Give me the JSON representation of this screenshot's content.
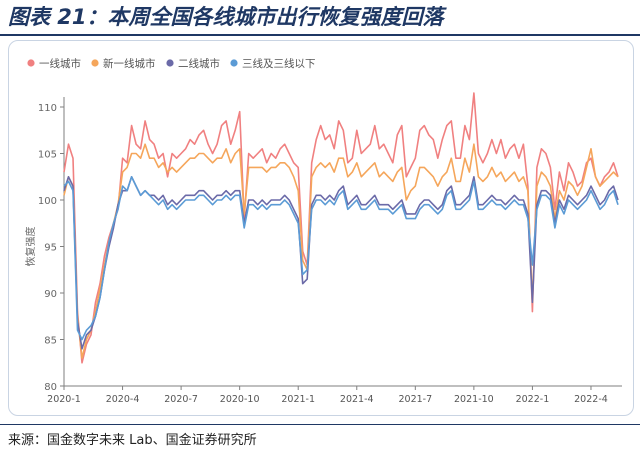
{
  "header": {
    "title": "图表 21：本周全国各线城市出行恢复强度回落"
  },
  "source": {
    "label": "来源：",
    "text": "国金数字未来 Lab、国金证券研究所"
  },
  "chart_data": {
    "type": "line",
    "title": "",
    "xlabel": "",
    "ylabel": "恢复强度",
    "ylim": [
      80,
      110
    ],
    "yticks": [
      80,
      85,
      90,
      95,
      100,
      105,
      110
    ],
    "grid": false,
    "legend_position": "top-left",
    "x_tick_labels": [
      "2020-1",
      "2020-4",
      "2020-7",
      "2020-10",
      "2021-1",
      "2021-4",
      "2021-7",
      "2021-10",
      "2022-1",
      "2022-4"
    ],
    "x_tick_weeks": [
      0,
      13,
      26,
      39,
      52,
      65,
      78,
      91,
      104,
      117
    ],
    "x": [
      0,
      1,
      2,
      3,
      4,
      5,
      6,
      7,
      8,
      9,
      10,
      11,
      12,
      13,
      14,
      15,
      16,
      17,
      18,
      19,
      20,
      21,
      22,
      23,
      24,
      25,
      26,
      27,
      28,
      29,
      30,
      31,
      32,
      33,
      34,
      35,
      36,
      37,
      38,
      39,
      40,
      41,
      42,
      43,
      44,
      45,
      46,
      47,
      48,
      49,
      50,
      51,
      52,
      53,
      54,
      55,
      56,
      57,
      58,
      59,
      60,
      61,
      62,
      63,
      64,
      65,
      66,
      67,
      68,
      69,
      70,
      71,
      72,
      73,
      74,
      75,
      76,
      77,
      78,
      79,
      80,
      81,
      82,
      83,
      84,
      85,
      86,
      87,
      88,
      89,
      90,
      91,
      92,
      93,
      94,
      95,
      96,
      97,
      98,
      99,
      100,
      101,
      102,
      103,
      104,
      105,
      106,
      107,
      108,
      109,
      110,
      111,
      112,
      113,
      114,
      115,
      116,
      117,
      118,
      119,
      120,
      121,
      122,
      123
    ],
    "series": [
      {
        "name": "一线城市",
        "color": "#f08080",
        "values": [
          103,
          106,
          104.5,
          88,
          82.5,
          84.5,
          85.5,
          89,
          91,
          94,
          96,
          97.5,
          99,
          104.5,
          104,
          108,
          106,
          105.5,
          108.5,
          106.5,
          106,
          104.5,
          105,
          102.5,
          105,
          104.5,
          105,
          105.5,
          106.5,
          106,
          107,
          107.5,
          106,
          105,
          106,
          108,
          108.5,
          106,
          107.5,
          109.5,
          98,
          105,
          104.5,
          105,
          105.5,
          104,
          105,
          104.5,
          105.5,
          106,
          105,
          104,
          103.5,
          94.5,
          93,
          104,
          106.5,
          108,
          106.5,
          107,
          105.5,
          108.5,
          107.5,
          104,
          104.5,
          107.5,
          105,
          105.5,
          106,
          108,
          105.5,
          106,
          105,
          104,
          107,
          108,
          102.5,
          103.5,
          104.5,
          107.5,
          108,
          107,
          106.5,
          104.5,
          106.5,
          108,
          108.5,
          104.5,
          104.5,
          108,
          106.5,
          111.5,
          105,
          104,
          105,
          106.5,
          105,
          106.5,
          104.5,
          105.5,
          106,
          104.5,
          106,
          101.5,
          88,
          103.5,
          105.5,
          105,
          103.5,
          99,
          103,
          101,
          104,
          103,
          101.5,
          102,
          104,
          104.5,
          102.5,
          101.5,
          102.5,
          103,
          104,
          102.5
        ]
      },
      {
        "name": "新一线城市",
        "color": "#f5a65b",
        "values": [
          100.5,
          102.5,
          101.5,
          87.5,
          83,
          85,
          86,
          88,
          90.5,
          93,
          95.5,
          97.5,
          99.5,
          103,
          103.5,
          105,
          105,
          104.5,
          106,
          104.5,
          104.5,
          103.5,
          104,
          103,
          103.5,
          103,
          103.5,
          104,
          104.5,
          104.5,
          105,
          105,
          104.5,
          104,
          104.5,
          104.5,
          105.5,
          104,
          105,
          105.5,
          98.5,
          103.5,
          103.5,
          103.5,
          103.5,
          103,
          103.5,
          103.5,
          104,
          104,
          103.5,
          102.5,
          101,
          93.5,
          92.5,
          102.5,
          103.5,
          104,
          103.5,
          104,
          103,
          104.5,
          104.5,
          102.5,
          103,
          104,
          102.5,
          103,
          103.5,
          104,
          102.5,
          103,
          102.5,
          102,
          103,
          103.5,
          100,
          101,
          101.5,
          103.5,
          103.5,
          103,
          102.5,
          101.5,
          102.5,
          103,
          104.5,
          102,
          102,
          104.5,
          103,
          106,
          102.5,
          102,
          102.5,
          103.5,
          102.5,
          103,
          102,
          102.5,
          103,
          102,
          102.5,
          101,
          89,
          101.5,
          103,
          102.5,
          101.5,
          98,
          101,
          100,
          102,
          101.5,
          100.5,
          101.5,
          103.5,
          105.5,
          102.5,
          101.5,
          102,
          102.5,
          103,
          102.5
        ]
      },
      {
        "name": "二线城市",
        "color": "#6b6aa8",
        "values": [
          101,
          102.5,
          101.5,
          87,
          84,
          85.5,
          86,
          87.5,
          89.5,
          92.5,
          95,
          97,
          99.5,
          101,
          101,
          102.5,
          101.5,
          100.5,
          101,
          100.5,
          100.5,
          100,
          100.5,
          99.5,
          100,
          99.5,
          100,
          100.5,
          100.5,
          100.5,
          101,
          101,
          100.5,
          100,
          100.5,
          100.5,
          101,
          100.5,
          101,
          101,
          97.5,
          100,
          100,
          99.5,
          100,
          99.5,
          100,
          100,
          100,
          100.5,
          100,
          99,
          98,
          91,
          91.5,
          99.5,
          100.5,
          100.5,
          100,
          100.5,
          100,
          101,
          101.5,
          99.5,
          100,
          100.5,
          99.5,
          99.5,
          100,
          100.5,
          99.5,
          99.5,
          99.5,
          99,
          99.5,
          100,
          98.5,
          98.5,
          98.5,
          99.5,
          100,
          100,
          99.5,
          99,
          99.5,
          101,
          101.5,
          99.5,
          99.5,
          100,
          100.5,
          102.5,
          99.5,
          99.5,
          100,
          100.5,
          100,
          100,
          99.5,
          100,
          100.5,
          100,
          100,
          98.5,
          89,
          99.5,
          101,
          101,
          100.5,
          97.5,
          100,
          99,
          100.5,
          100,
          99.5,
          100,
          100.5,
          101.5,
          100.5,
          99.5,
          100,
          101,
          101.5,
          100
        ]
      },
      {
        "name": "三线及三线以下",
        "color": "#5b9bd5",
        "values": [
          101.5,
          102,
          101,
          86,
          85,
          86,
          86.5,
          87.5,
          89.5,
          92.5,
          95.5,
          97.5,
          99,
          101.5,
          101,
          102.5,
          101.5,
          100.5,
          101,
          100.5,
          100,
          99.5,
          100,
          99,
          99.5,
          99,
          99.5,
          100,
          100,
          100,
          100.5,
          100.5,
          100,
          99.5,
          100,
          100,
          100.5,
          100,
          100.5,
          100.5,
          97,
          99.5,
          99.5,
          99,
          99.5,
          99,
          99.5,
          99.5,
          99.5,
          100,
          99.5,
          98.5,
          97.5,
          92,
          92.5,
          99,
          100,
          100,
          99.5,
          100,
          99.5,
          100.5,
          101,
          99,
          99.5,
          100,
          99,
          99,
          99.5,
          100,
          99,
          99,
          99,
          98.5,
          99,
          99.5,
          98,
          98,
          98,
          99,
          99.5,
          99.5,
          99,
          98.5,
          99,
          100.5,
          101,
          99,
          99,
          99.5,
          100,
          102,
          99,
          99,
          99.5,
          100,
          99.5,
          99.5,
          99,
          99.5,
          100,
          99.5,
          99.5,
          98,
          93,
          99,
          100.5,
          100.5,
          100,
          97,
          99.5,
          98.5,
          100,
          99.5,
          99,
          99.5,
          100,
          101,
          100,
          99,
          99.5,
          100.5,
          101,
          99.5
        ]
      }
    ]
  }
}
